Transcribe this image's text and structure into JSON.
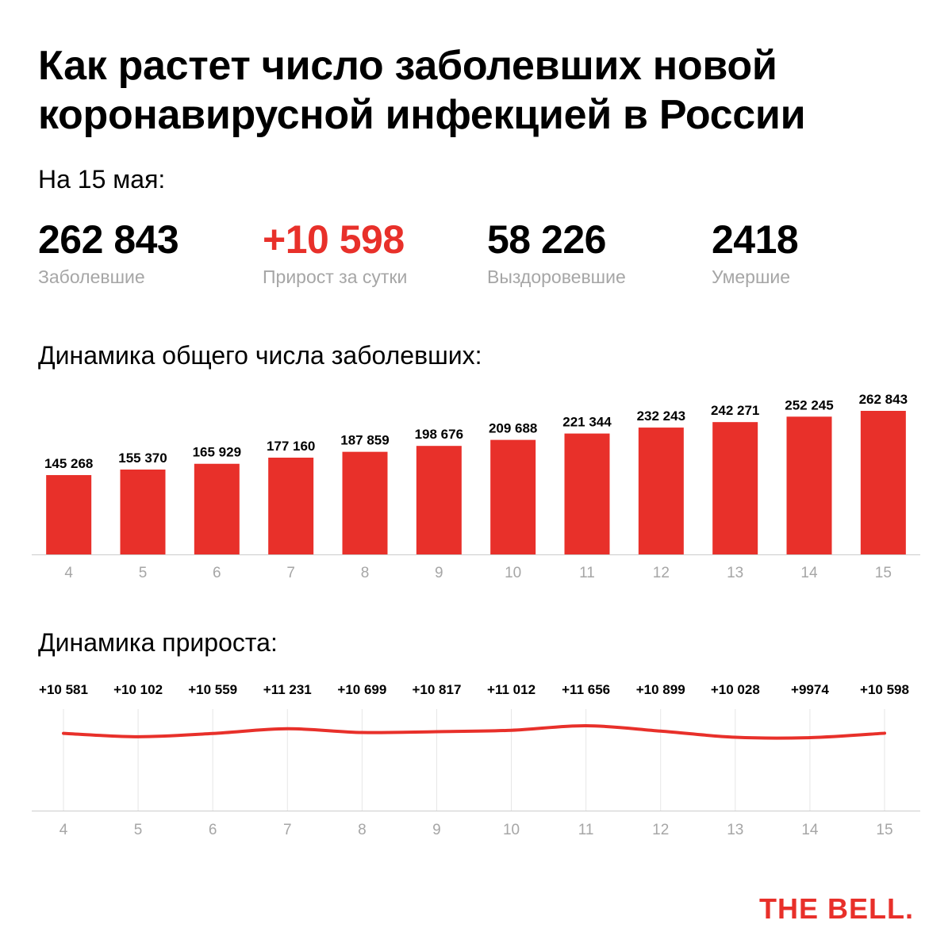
{
  "title": "Как растет число заболевших новой коронавирусной инфекцией в России",
  "date_label": "На 15 мая:",
  "stats": {
    "cases": {
      "value": "262 843",
      "label": "Заболевшие"
    },
    "daily": {
      "value": "+10 598",
      "label": "Прирост за сутки"
    },
    "recovered": {
      "value": "58 226",
      "label": "Выздоровевшие"
    },
    "deaths": {
      "value": "2418",
      "label": "Умершие"
    }
  },
  "sections": {
    "total": "Динамика общего числа заболевших:",
    "growth": "Динамика прироста:"
  },
  "logo": "THE BELL.",
  "colors": {
    "accent": "#e8302a",
    "muted": "#a6a6a6",
    "grid": "#e6e6e6",
    "axis": "#cccccc"
  },
  "chart_data": [
    {
      "type": "bar",
      "title": "Динамика общего числа заболевших:",
      "categories": [
        "4",
        "5",
        "6",
        "7",
        "8",
        "9",
        "10",
        "11",
        "12",
        "13",
        "14",
        "15"
      ],
      "values": [
        145268,
        155370,
        165929,
        177160,
        187859,
        198676,
        209688,
        221344,
        232243,
        242271,
        252245,
        262843
      ],
      "labels": [
        "145 268",
        "155 370",
        "165 929",
        "177 160",
        "187 859",
        "198 676",
        "209 688",
        "221 344",
        "232 243",
        "242 271",
        "252 245",
        "262 843"
      ],
      "ylim": [
        0,
        262843
      ],
      "grid": false
    },
    {
      "type": "line",
      "title": "Динамика прироста:",
      "categories": [
        "4",
        "5",
        "6",
        "7",
        "8",
        "9",
        "10",
        "11",
        "12",
        "13",
        "14",
        "15"
      ],
      "values": [
        10581,
        10102,
        10559,
        11231,
        10699,
        10817,
        11012,
        11656,
        10899,
        10028,
        9974,
        10598
      ],
      "labels": [
        "+10 581",
        "+10 102",
        "+10 559",
        "+11 231",
        "+10 699",
        "+10 817",
        "+11 012",
        "+11 656",
        "+10 899",
        "+10 028",
        "+9974",
        "+10 598"
      ],
      "grid": true
    }
  ]
}
